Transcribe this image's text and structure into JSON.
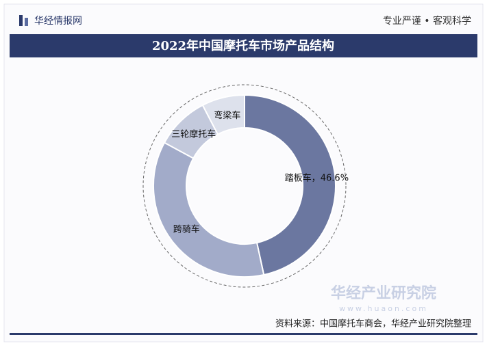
{
  "header": {
    "brand": "华经情报网",
    "slogan": "专业严谨 • 客观科学"
  },
  "chart_data": {
    "type": "donut",
    "title": "2022年中国摩托车市场产品结构",
    "categories": [
      "踏板车",
      "跨骑车",
      "三轮摩托车",
      "弯梁车"
    ],
    "values": [
      46.6,
      36.3,
      9.5,
      7.6
    ],
    "value_labels": [
      "46.6%",
      null,
      null,
      null
    ],
    "label_separator": "，",
    "colors": [
      "#6b77a0",
      "#a2abc9",
      "#c3c9dc",
      "#dde1ec"
    ]
  },
  "watermark": {
    "name": "华经产业研究院",
    "url": "www.huaon.com"
  },
  "source": "资料来源：中国摩托车商会，华经产业研究院整理"
}
